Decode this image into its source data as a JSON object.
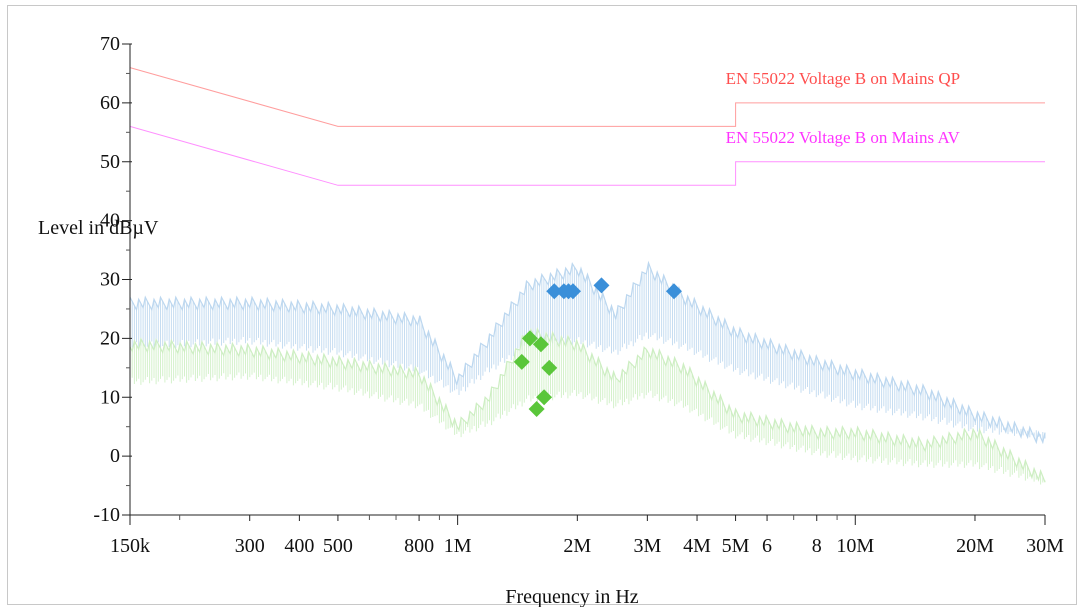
{
  "chart_data": {
    "type": "line",
    "ylabel": "Level in dBµV",
    "xlabel": "Frequency in Hz",
    "x_scale": "log",
    "xlim_hz": [
      150000,
      30000000
    ],
    "ylim": [
      -10,
      70
    ],
    "y_ticks": [
      -10,
      0,
      10,
      20,
      30,
      40,
      50,
      60,
      70
    ],
    "x_ticks": [
      {
        "hz": 150000,
        "label": "150k"
      },
      {
        "hz": 300000,
        "label": "300"
      },
      {
        "hz": 400000,
        "label": "400"
      },
      {
        "hz": 500000,
        "label": "500"
      },
      {
        "hz": 800000,
        "label": "800"
      },
      {
        "hz": 1000000,
        "label": "1M"
      },
      {
        "hz": 2000000,
        "label": "2M"
      },
      {
        "hz": 3000000,
        "label": "3M"
      },
      {
        "hz": 4000000,
        "label": "4M"
      },
      {
        "hz": 5000000,
        "label": "5M"
      },
      {
        "hz": 6000000,
        "label": "6"
      },
      {
        "hz": 8000000,
        "label": "8"
      },
      {
        "hz": 10000000,
        "label": "10M"
      },
      {
        "hz": 20000000,
        "label": "20M"
      },
      {
        "hz": 30000000,
        "label": "30M"
      }
    ],
    "limit_lines": [
      {
        "name": "EN 55022 Voltage B on Mains QP",
        "color": "#ff4d4d",
        "points": [
          [
            150000,
            66
          ],
          [
            500000,
            56
          ],
          [
            5000000,
            56
          ],
          [
            5000000,
            60
          ],
          [
            30000000,
            60
          ]
        ]
      },
      {
        "name": "EN 55022 Voltage B on Mains AV",
        "color": "#ff33ff",
        "points": [
          [
            150000,
            56
          ],
          [
            500000,
            46
          ],
          [
            5000000,
            46
          ],
          [
            5000000,
            50
          ],
          [
            30000000,
            50
          ]
        ]
      }
    ],
    "series": [
      {
        "color": "#bcd7ef",
        "envelope": [
          [
            150000,
            27
          ],
          [
            300000,
            27
          ],
          [
            500000,
            26
          ],
          [
            800000,
            24
          ],
          [
            1000000,
            14
          ],
          [
            1200000,
            21
          ],
          [
            1500000,
            30
          ],
          [
            2000000,
            33
          ],
          [
            2500000,
            25
          ],
          [
            3000000,
            33
          ],
          [
            3700000,
            28
          ],
          [
            5000000,
            22
          ],
          [
            8000000,
            17
          ],
          [
            10000000,
            15
          ],
          [
            15000000,
            12
          ],
          [
            20000000,
            8
          ],
          [
            30000000,
            4
          ]
        ],
        "floor": [
          [
            150000,
            18
          ],
          [
            300000,
            19
          ],
          [
            500000,
            17
          ],
          [
            800000,
            14
          ],
          [
            1000000,
            10
          ],
          [
            1200000,
            14
          ],
          [
            1500000,
            18
          ],
          [
            2000000,
            19
          ],
          [
            2500000,
            17
          ],
          [
            3000000,
            20
          ],
          [
            3700000,
            18
          ],
          [
            5000000,
            14
          ],
          [
            8000000,
            10
          ],
          [
            10000000,
            8
          ],
          [
            15000000,
            6
          ],
          [
            20000000,
            4
          ],
          [
            30000000,
            3
          ]
        ]
      },
      {
        "color": "#cdeec2",
        "envelope": [
          [
            150000,
            20
          ],
          [
            300000,
            19
          ],
          [
            500000,
            17
          ],
          [
            800000,
            15
          ],
          [
            1000000,
            6
          ],
          [
            1200000,
            11
          ],
          [
            1500000,
            22
          ],
          [
            2000000,
            20
          ],
          [
            2500000,
            14
          ],
          [
            3000000,
            19
          ],
          [
            3700000,
            16
          ],
          [
            5000000,
            8
          ],
          [
            8000000,
            5
          ],
          [
            10000000,
            5
          ],
          [
            15000000,
            3
          ],
          [
            20000000,
            5
          ],
          [
            30000000,
            -3
          ]
        ],
        "floor": [
          [
            150000,
            12
          ],
          [
            300000,
            13
          ],
          [
            500000,
            11
          ],
          [
            800000,
            8
          ],
          [
            1000000,
            3
          ],
          [
            1200000,
            5
          ],
          [
            1500000,
            9
          ],
          [
            2000000,
            10
          ],
          [
            2500000,
            8
          ],
          [
            3000000,
            10
          ],
          [
            3700000,
            8
          ],
          [
            5000000,
            3
          ],
          [
            8000000,
            0
          ],
          [
            10000000,
            -1
          ],
          [
            15000000,
            -2
          ],
          [
            20000000,
            -2
          ],
          [
            30000000,
            -5
          ]
        ]
      }
    ],
    "markers": [
      {
        "color": "#3a8fd9",
        "points": [
          [
            1750000,
            28
          ],
          [
            1850000,
            28
          ],
          [
            1900000,
            28
          ],
          [
            1950000,
            28
          ],
          [
            2300000,
            29
          ],
          [
            3500000,
            28
          ]
        ]
      },
      {
        "color": "#5ac63a",
        "points": [
          [
            1450000,
            16
          ],
          [
            1520000,
            20
          ],
          [
            1620000,
            19
          ],
          [
            1700000,
            15
          ],
          [
            1580000,
            8
          ],
          [
            1650000,
            10
          ]
        ]
      }
    ]
  }
}
